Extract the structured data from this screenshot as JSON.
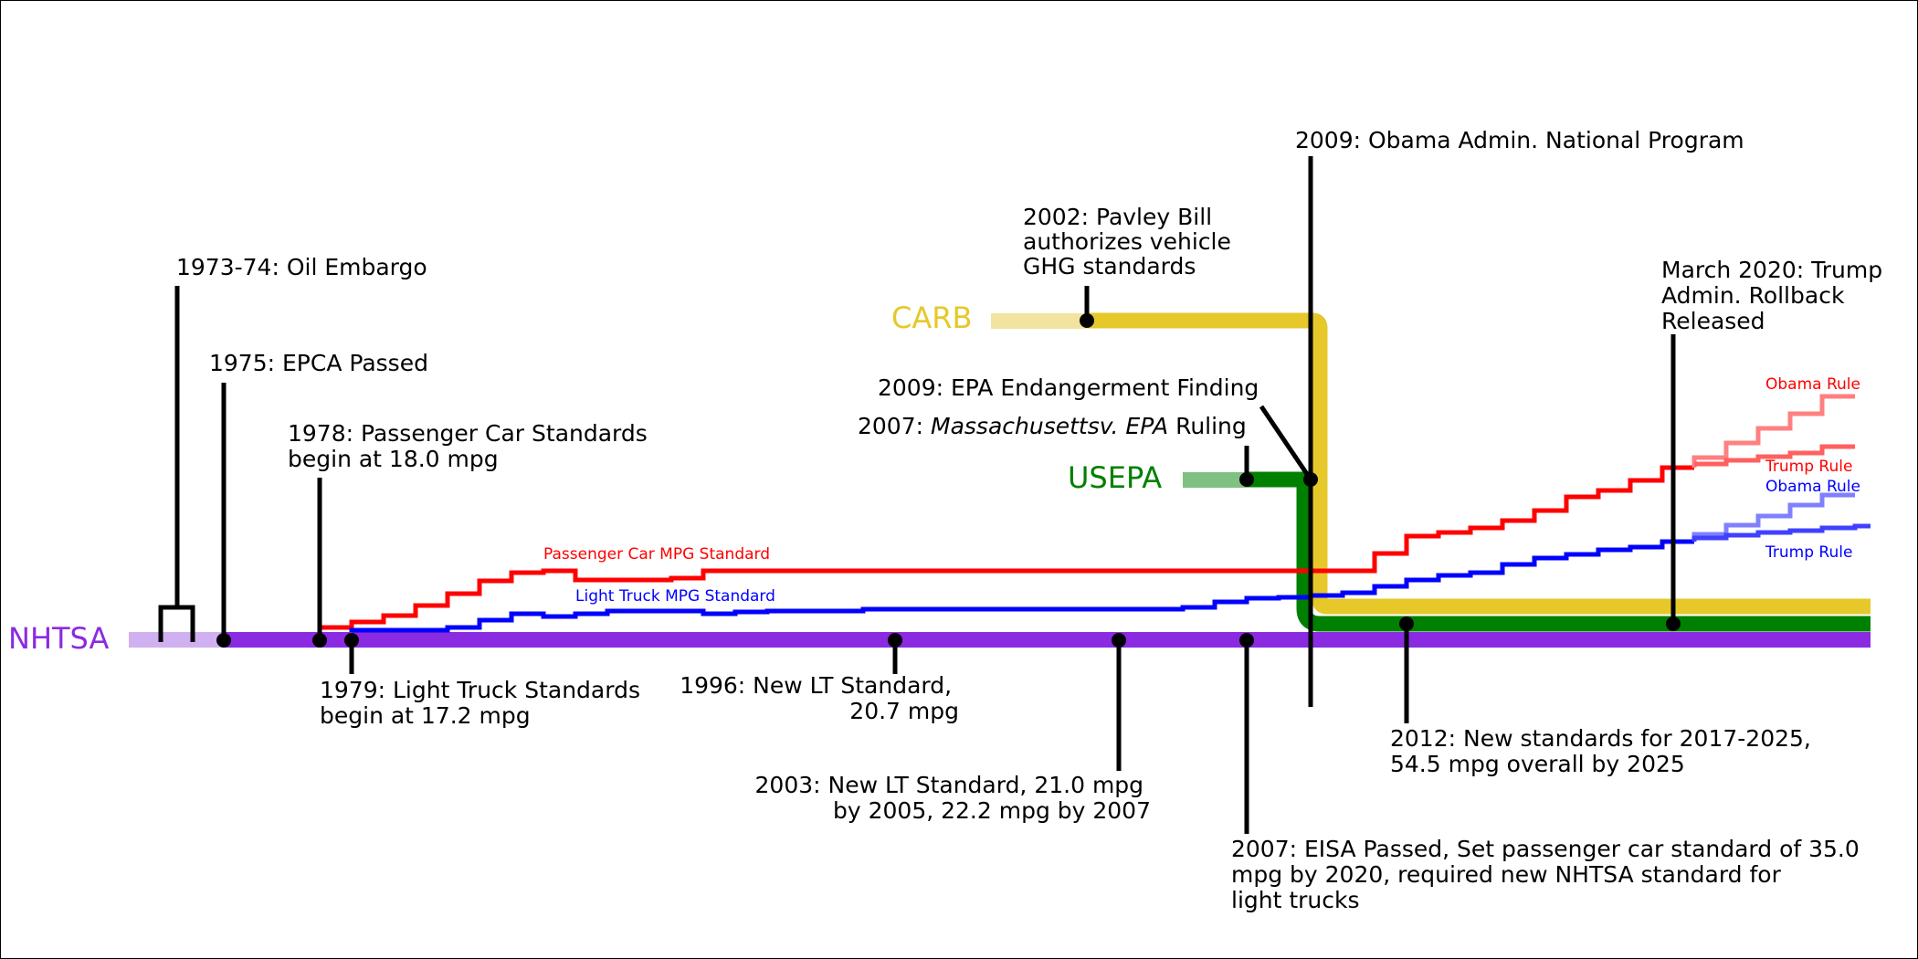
{
  "lanes": {
    "nhtsa": {
      "label": "NHTSA",
      "color": "#8a2be2"
    },
    "carb": {
      "label": "CARB",
      "color": "#e6c82a"
    },
    "usepa": {
      "label": "USEPA",
      "color": "#008000"
    }
  },
  "series_labels": {
    "passenger_car": "Passenger Car MPG Standard",
    "light_truck": "Light Truck MPG Standard",
    "car_obama": "Obama Rule",
    "car_trump": "Trump Rule",
    "truck_obama": "Obama Rule",
    "truck_trump": "Trump Rule"
  },
  "series_colors": {
    "passenger_car": "#ff0000",
    "light_truck": "#0000ff"
  },
  "events": {
    "oil_embargo": "1973-74: Oil Embargo",
    "epca": "1975: EPCA Passed",
    "pc_1978": [
      "1978: Passenger Car Standards",
      "begin at 18.0 mpg"
    ],
    "lt_1979": [
      "1979: Light Truck Standards",
      "begin at 17.2 mpg"
    ],
    "lt_1996": [
      "1996: New LT Standard,",
      "20.7 mpg"
    ],
    "lt_2003": [
      "2003: New LT Standard, 21.0 mpg",
      "by 2005, 22.2 mpg by 2007"
    ],
    "pavley_2002": [
      "2002: Pavley Bill",
      "authorizes vehicle",
      "GHG standards"
    ],
    "endangerment_2009": "2009: EPA Endangerment Finding",
    "mass_v_epa_2007": {
      "prefix": "2007: ",
      "case": "Massachusetts",
      "v": "v",
      "epa": ". EPA",
      "suffix": " Ruling"
    },
    "obama_2009": "2009: Obama Admin. National Program",
    "eisa_2007": [
      "2007: EISA Passed, Set passenger car standard of 35.0",
      "mpg by 2020, required new NHTSA standard for",
      "light trucks"
    ],
    "standards_2012": [
      "2012: New standards for 2017-2025,",
      "54.5 mpg overall by 2025"
    ],
    "trump_2020": [
      "March 2020: Trump",
      "Admin. Rollback",
      "Released"
    ]
  }
}
